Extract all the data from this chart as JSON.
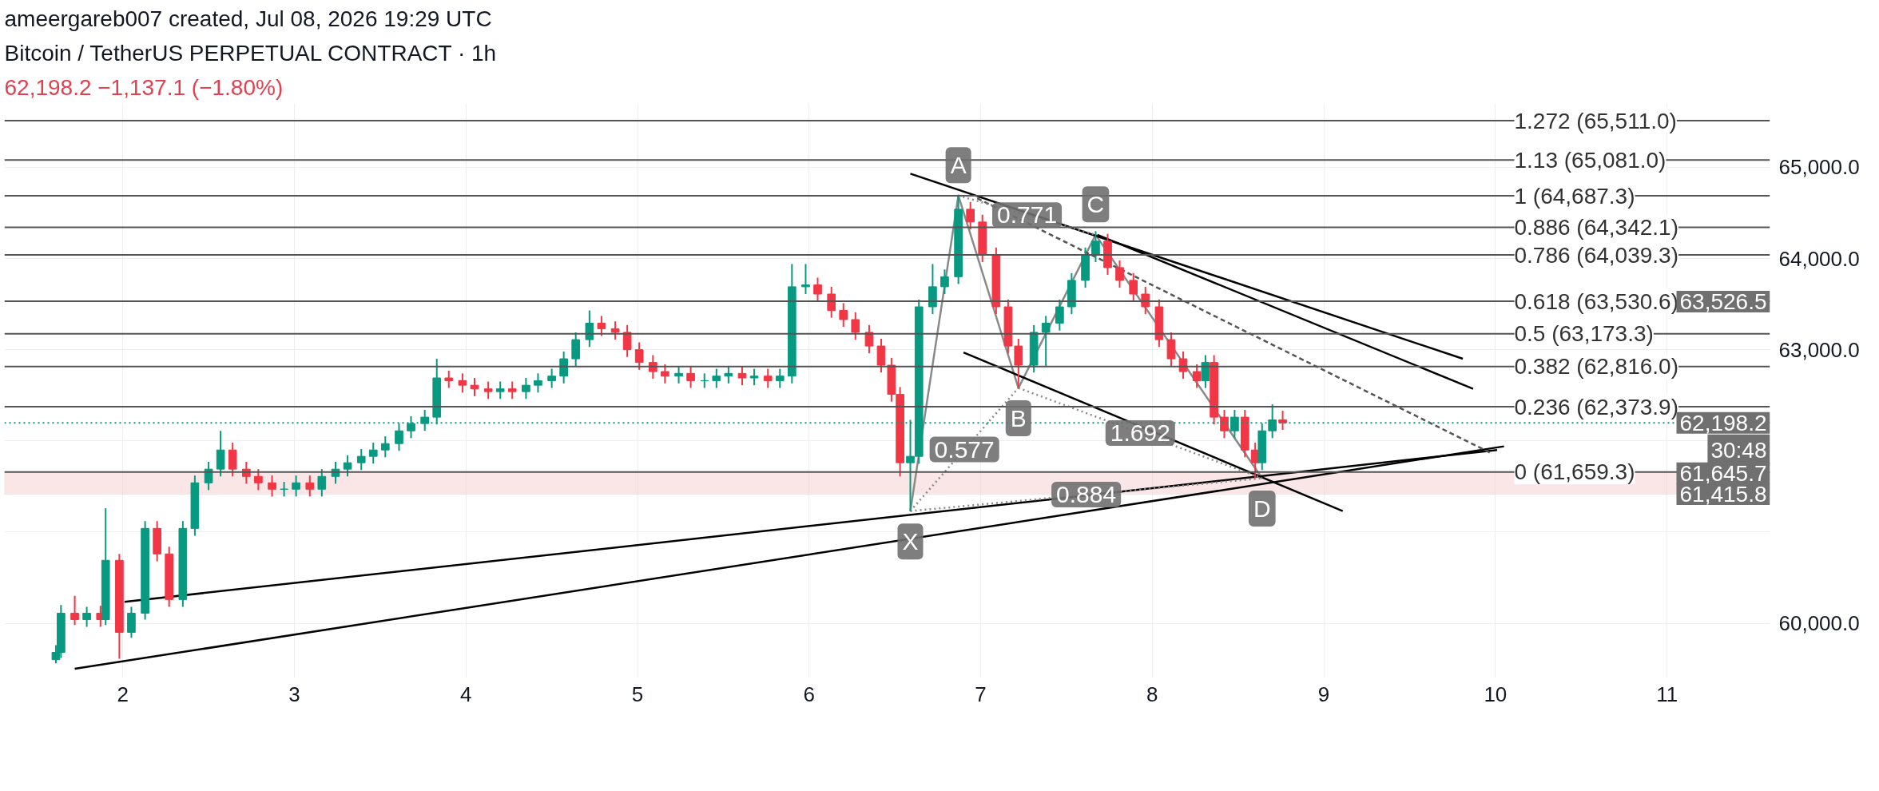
{
  "chart_data": {
    "type": "candlestick",
    "title": "Bitcoin / TetherUS PERPETUAL CONTRACT · 1h",
    "subtitle": "62,198.2 −1,137.1 (−1.80%)",
    "xlim": [
      1.31,
      11.6
    ],
    "ylim": [
      59400,
      65700
    ],
    "xticks": [
      2,
      3,
      4,
      5,
      6,
      7,
      8,
      9,
      10,
      11
    ],
    "yticks": [
      {
        "value": 60000,
        "label": "60,000.0"
      },
      {
        "value": 61000,
        "label": null
      },
      {
        "value": 62000,
        "label": null
      },
      {
        "value": 63000,
        "label": "63,000.0"
      },
      {
        "value": 64000,
        "label": "64,000.0"
      },
      {
        "value": 65000,
        "label": "65,000.0"
      }
    ],
    "grid": true,
    "x": [
      1.61,
      1.64,
      1.72,
      1.79,
      1.87,
      1.9,
      1.98,
      2.05,
      2.13,
      2.2,
      2.27,
      2.35,
      2.42,
      2.5,
      2.57,
      2.64,
      2.72,
      2.79,
      2.87,
      2.94,
      3.01,
      3.09,
      3.16,
      3.24,
      3.31,
      3.39,
      3.46,
      3.53,
      3.61,
      3.68,
      3.76,
      3.83,
      3.9,
      3.98,
      4.05,
      4.13,
      4.2,
      4.27,
      4.35,
      4.42,
      4.5,
      4.57,
      4.64,
      4.72,
      4.79,
      4.87,
      4.94,
      5.01,
      5.09,
      5.16,
      5.24,
      5.31,
      5.39,
      5.46,
      5.53,
      5.61,
      5.68,
      5.76,
      5.83,
      5.9,
      5.98,
      6.05,
      6.13,
      6.2,
      6.27,
      6.35,
      6.42,
      6.48,
      6.53,
      6.59,
      6.64,
      6.72,
      6.79,
      6.87,
      6.94,
      7.01,
      7.09,
      7.16,
      7.22,
      7.31,
      7.38,
      7.46,
      7.53,
      7.61,
      7.67,
      7.74,
      7.81,
      7.89,
      7.96,
      8.04,
      8.11,
      8.18,
      8.26,
      8.31,
      8.36,
      8.42,
      8.48,
      8.54,
      8.6,
      8.64,
      8.7,
      8.76
    ],
    "ohlc": [
      [
        59600,
        59760,
        59560,
        59680
      ],
      [
        59680,
        60200,
        59620,
        60110
      ],
      [
        60110,
        60300,
        59980,
        60040
      ],
      [
        60040,
        60180,
        59960,
        60110
      ],
      [
        60110,
        60190,
        59960,
        60040
      ],
      [
        60040,
        61260,
        59980,
        60690
      ],
      [
        60690,
        60760,
        59610,
        59900
      ],
      [
        59900,
        60180,
        59840,
        60110
      ],
      [
        60110,
        61120,
        60040,
        61040
      ],
      [
        61040,
        61120,
        60680,
        60760
      ],
      [
        60760,
        60840,
        60180,
        60260
      ],
      [
        60260,
        61120,
        60180,
        61040
      ],
      [
        61040,
        61620,
        60960,
        61540
      ],
      [
        61540,
        61770,
        61460,
        61690
      ],
      [
        61690,
        62110,
        61610,
        61900
      ],
      [
        61900,
        61980,
        61610,
        61690
      ],
      [
        61690,
        61770,
        61530,
        61610
      ],
      [
        61610,
        61690,
        61460,
        61540
      ],
      [
        61540,
        61620,
        61390,
        61470
      ],
      [
        61470,
        61550,
        61390,
        61470
      ],
      [
        61470,
        61620,
        61390,
        61540
      ],
      [
        61540,
        61620,
        61390,
        61470
      ],
      [
        61470,
        61690,
        61390,
        61610
      ],
      [
        61610,
        61770,
        61530,
        61690
      ],
      [
        61690,
        61840,
        61610,
        61760
      ],
      [
        61760,
        61910,
        61680,
        61830
      ],
      [
        61830,
        61980,
        61750,
        61900
      ],
      [
        61900,
        62050,
        61820,
        61970
      ],
      [
        61970,
        62190,
        61890,
        62110
      ],
      [
        62110,
        62270,
        62030,
        62190
      ],
      [
        62190,
        62340,
        62110,
        62260
      ],
      [
        62260,
        62900,
        62180,
        62690
      ],
      [
        62690,
        62770,
        62580,
        62660
      ],
      [
        62660,
        62740,
        62530,
        62610
      ],
      [
        62610,
        62690,
        62490,
        62570
      ],
      [
        62570,
        62650,
        62460,
        62540
      ],
      [
        62540,
        62650,
        62460,
        62570
      ],
      [
        62570,
        62650,
        62460,
        62540
      ],
      [
        62540,
        62690,
        62460,
        62610
      ],
      [
        62610,
        62740,
        62530,
        62660
      ],
      [
        62660,
        62790,
        62580,
        62710
      ],
      [
        62710,
        62980,
        62630,
        62900
      ],
      [
        62900,
        63190,
        62820,
        63110
      ],
      [
        63110,
        63430,
        63030,
        63290
      ],
      [
        63290,
        63370,
        63150,
        63230
      ],
      [
        63230,
        63310,
        63110,
        63190
      ],
      [
        63190,
        63270,
        62920,
        63000
      ],
      [
        63000,
        63080,
        62780,
        62860
      ],
      [
        62860,
        62940,
        62680,
        62760
      ],
      [
        62760,
        62840,
        62630,
        62710
      ],
      [
        62710,
        62820,
        62630,
        62740
      ],
      [
        62740,
        62820,
        62580,
        62660
      ],
      [
        62660,
        62740,
        62580,
        62660
      ],
      [
        62660,
        62790,
        62580,
        62710
      ],
      [
        62710,
        62820,
        62630,
        62740
      ],
      [
        62740,
        62820,
        62610,
        62690
      ],
      [
        62690,
        62790,
        62610,
        62710
      ],
      [
        62710,
        62790,
        62580,
        62660
      ],
      [
        62660,
        62790,
        62580,
        62710
      ],
      [
        62710,
        63940,
        62630,
        63690
      ],
      [
        63690,
        63940,
        63610,
        63710
      ],
      [
        63710,
        63790,
        63530,
        63610
      ],
      [
        63610,
        63690,
        63350,
        63430
      ],
      [
        63430,
        63510,
        63250,
        63330
      ],
      [
        63330,
        63410,
        63110,
        63190
      ],
      [
        63190,
        63270,
        62960,
        63040
      ],
      [
        63040,
        63120,
        62750,
        62830
      ],
      [
        62830,
        62910,
        62430,
        62510
      ],
      [
        62510,
        62590,
        61610,
        61760
      ],
      [
        61760,
        62230,
        61230,
        61830
      ],
      [
        61830,
        63550,
        61750,
        63470
      ],
      [
        63470,
        63940,
        63390,
        63690
      ],
      [
        63690,
        63880,
        63610,
        63800
      ],
      [
        63800,
        64690,
        63720,
        64540
      ],
      [
        64540,
        64620,
        64320,
        64400
      ],
      [
        64400,
        64480,
        63960,
        64040
      ],
      [
        64040,
        64120,
        63390,
        63470
      ],
      [
        63470,
        63550,
        62960,
        63040
      ],
      [
        63040,
        63120,
        62580,
        62830
      ],
      [
        62830,
        63270,
        62750,
        63190
      ],
      [
        63190,
        63370,
        62820,
        63290
      ],
      [
        63290,
        63550,
        63210,
        63470
      ],
      [
        63470,
        63840,
        63390,
        63760
      ],
      [
        63760,
        64120,
        63680,
        64040
      ],
      [
        64040,
        64300,
        63960,
        64190
      ],
      [
        64190,
        64270,
        63820,
        63900
      ],
      [
        63900,
        63980,
        63680,
        63760
      ],
      [
        63760,
        63840,
        63530,
        63610
      ],
      [
        63610,
        63690,
        63390,
        63470
      ],
      [
        63470,
        63550,
        63030,
        63110
      ],
      [
        63110,
        63190,
        62820,
        62900
      ],
      [
        62900,
        62980,
        62680,
        62760
      ],
      [
        62760,
        62840,
        62580,
        62660
      ],
      [
        62660,
        62940,
        62580,
        62860
      ],
      [
        62860,
        62940,
        62180,
        62260
      ],
      [
        62260,
        62340,
        62030,
        62110
      ],
      [
        62110,
        62340,
        62030,
        62260
      ],
      [
        62260,
        62340,
        61820,
        61900
      ],
      [
        61900,
        61980,
        61590,
        61760
      ],
      [
        61760,
        62190,
        61680,
        62110
      ],
      [
        62110,
        62400,
        62030,
        62230
      ],
      [
        62230,
        62330,
        62120,
        62198.2
      ]
    ],
    "series": [
      {
        "type": "line",
        "color": "#8a8a8a",
        "x": [
          6.59,
          6.87,
          7.22,
          7.67,
          8.64
        ],
        "values": [
          61230,
          64690,
          62580,
          64260,
          61590
        ]
      },
      {
        "type": "line",
        "color": "#000000",
        "x": [
          1.72,
          10.05
        ],
        "values": [
          59500,
          61940
        ]
      },
      {
        "type": "line",
        "color": "#000000",
        "x": [
          2.01,
          10.01
        ],
        "values": [
          60235,
          61900
        ]
      },
      {
        "type": "line",
        "color": "#000000",
        "x": [
          6.59,
          9.81
        ],
        "values": [
          64930,
          62900
        ]
      },
      {
        "type": "line",
        "color": "#000000",
        "x": [
          7.68,
          9.87
        ],
        "values": [
          64260,
          62570
        ]
      },
      {
        "type": "line",
        "color": "#555555",
        "line_style": "dashed",
        "x": [
          6.98,
          9.98
        ],
        "values": [
          64660,
          61860
        ]
      },
      {
        "type": "line",
        "color": "#000000",
        "x": [
          6.9,
          9.11
        ],
        "values": [
          62970,
          61230
        ]
      },
      {
        "type": "line",
        "color": "#8a8a8a",
        "line_style": "dotted",
        "x": [
          6.59,
          7.22
        ],
        "values": [
          61230,
          62580
        ]
      },
      {
        "type": "line",
        "color": "#8a8a8a",
        "line_style": "dotted",
        "x": [
          6.87,
          7.67
        ],
        "values": [
          64690,
          64260
        ]
      },
      {
        "type": "line",
        "color": "#8a8a8a",
        "line_style": "dotted",
        "x": [
          7.22,
          8.64
        ],
        "values": [
          62580,
          61590
        ]
      },
      {
        "type": "line",
        "color": "#8a8a8a",
        "line_style": "dotted",
        "x": [
          6.59,
          8.64
        ],
        "values": [
          61230,
          61590
        ]
      }
    ],
    "ref_lines": [
      {
        "axis": "y",
        "value": 65511.0,
        "label": "1.272 (65,511.0)",
        "color": "#555555"
      },
      {
        "axis": "y",
        "value": 65081.0,
        "label": "1.13 (65,081.0)",
        "color": "#555555"
      },
      {
        "axis": "y",
        "value": 64687.3,
        "label": "1 (64,687.3)",
        "color": "#555555"
      },
      {
        "axis": "y",
        "value": 64342.1,
        "label": "0.886 (64,342.1)",
        "color": "#555555"
      },
      {
        "axis": "y",
        "value": 64039.3,
        "label": "0.786 (64,039.3)",
        "color": "#555555"
      },
      {
        "axis": "y",
        "value": 63530.6,
        "label": "0.618 (63,530.6)",
        "color": "#555555"
      },
      {
        "axis": "y",
        "value": 63173.3,
        "label": "0.5 (63,173.3)",
        "color": "#555555"
      },
      {
        "axis": "y",
        "value": 62816.0,
        "label": "0.382 (62,816.0)",
        "color": "#555555"
      },
      {
        "axis": "y",
        "value": 62373.9,
        "label": "0.236 (62,373.9)",
        "color": "#555555"
      },
      {
        "axis": "y",
        "value": 61659.3,
        "label": "0 (61,659.3)",
        "color": "#555555"
      },
      {
        "axis": "y",
        "value": 62198.2,
        "color": "#089981",
        "line_style": "dotted"
      }
    ],
    "bands": [
      {
        "axis": "y",
        "from": 61415.8,
        "to": 61659.3,
        "color": "#f7d4d7"
      }
    ],
    "annotations": [
      "ameergareb007 created, Jul 08, 2026 19:29 UTC",
      {
        "text": "63,526.5",
        "y": 63526.5
      },
      {
        "text": "62,198.2",
        "y": 62198.2
      },
      {
        "text": "30:48",
        "y": 62198.2
      },
      {
        "text": "61,645.7",
        "y": 61645.7
      },
      {
        "text": "61,415.8",
        "y": 61415.8
      },
      {
        "text": "X",
        "x": 6.59,
        "y": 61230
      },
      {
        "text": "A",
        "x": 6.87,
        "y": 64690
      },
      {
        "text": "B",
        "x": 7.22,
        "y": 62580
      },
      {
        "text": "C",
        "x": 7.67,
        "y": 64260
      },
      {
        "text": "D",
        "x": 8.64,
        "y": 61590
      },
      {
        "text": "0.577",
        "x": 6.905,
        "y": 61905
      },
      {
        "text": "0.771",
        "x": 7.27,
        "y": 64475
      },
      {
        "text": "1.692",
        "x": 7.93,
        "y": 62085
      },
      {
        "text": "0.884",
        "x": 7.615,
        "y": 61410
      }
    ]
  }
}
